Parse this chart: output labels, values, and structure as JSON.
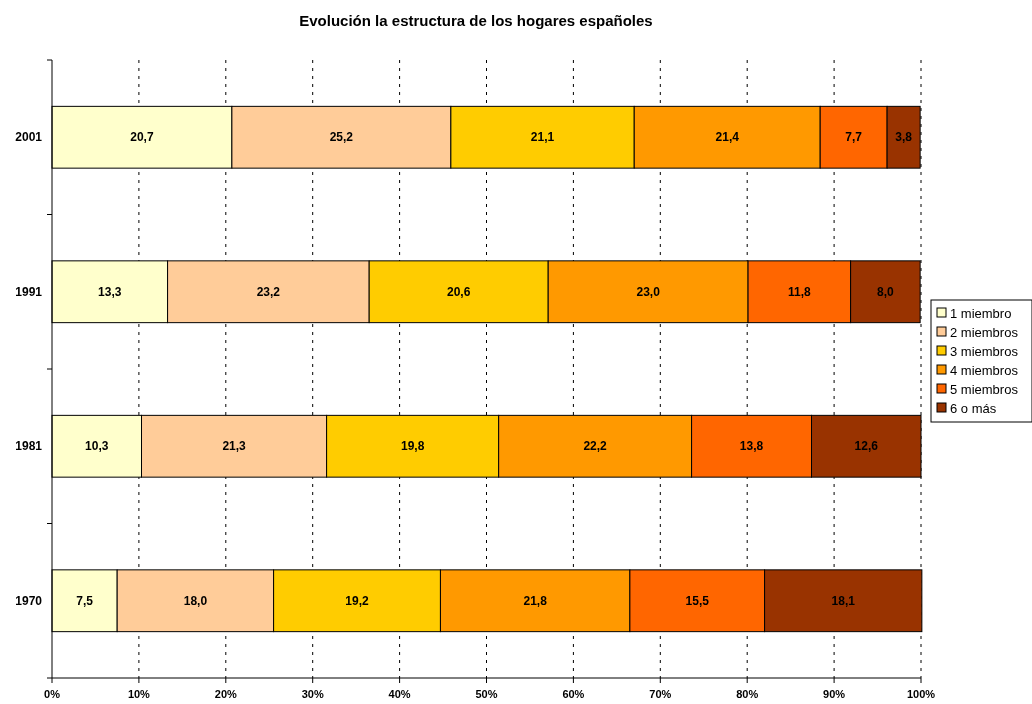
{
  "chart_data": {
    "type": "bar",
    "orientation": "horizontal",
    "stacked": true,
    "title": "Evolución la estructura de los hogares españoles",
    "categories": [
      "2001",
      "1991",
      "1981",
      "1970"
    ],
    "series": [
      {
        "name": "1 miembro",
        "color": "#ffffcc",
        "values": [
          20.7,
          13.3,
          10.3,
          7.5
        ],
        "value_labels": [
          "20,7",
          "13,3",
          "10,3",
          "7,5"
        ]
      },
      {
        "name": "2 miembros",
        "color": "#ffcc99",
        "values": [
          25.2,
          23.2,
          21.3,
          18.0
        ],
        "value_labels": [
          "25,2",
          "23,2",
          "21,3",
          "18,0"
        ]
      },
      {
        "name": "3 miembros",
        "color": "#ffcc00",
        "values": [
          21.1,
          20.6,
          19.8,
          19.2
        ],
        "value_labels": [
          "21,1",
          "20,6",
          "19,8",
          "19,2"
        ]
      },
      {
        "name": "4 miembros",
        "color": "#ff9900",
        "values": [
          21.4,
          23.0,
          22.2,
          21.8
        ],
        "value_labels": [
          "21,4",
          "23,0",
          "22,2",
          "21,8"
        ]
      },
      {
        "name": "5 miembros",
        "color": "#ff6600",
        "values": [
          7.7,
          11.8,
          13.8,
          15.5
        ],
        "value_labels": [
          "7,7",
          "11,8",
          "13,8",
          "15,5"
        ]
      },
      {
        "name": "6 o más",
        "color": "#993300",
        "values": [
          3.8,
          8.0,
          12.6,
          18.1
        ],
        "value_labels": [
          "3,8",
          "8,0",
          "12,6",
          "18,1"
        ]
      }
    ],
    "xlim": [
      0,
      100
    ],
    "xticks": [
      {
        "value": 0,
        "label": "0%"
      },
      {
        "value": 10,
        "label": "10%"
      },
      {
        "value": 20,
        "label": "20%"
      },
      {
        "value": 30,
        "label": "30%"
      },
      {
        "value": 40,
        "label": "40%"
      },
      {
        "value": 50,
        "label": "50%"
      },
      {
        "value": 60,
        "label": "60%"
      },
      {
        "value": 70,
        "label": "70%"
      },
      {
        "value": 80,
        "label": "80%"
      },
      {
        "value": 90,
        "label": "90%"
      },
      {
        "value": 100,
        "label": "100%"
      }
    ],
    "grid": "x",
    "legend": "right"
  }
}
